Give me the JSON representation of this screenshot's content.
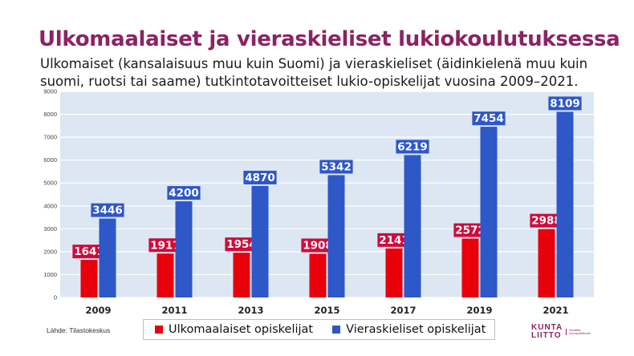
{
  "header": {
    "title": "Ulkomaalaiset ja vieraskieliset lukiokoulutuksessa",
    "subtitle": "Ulkomaiset (kansalaisuus muu kuin Suomi) ja vieraskieliset (äidinkielenä muu kuin suomi, ruotsi tai saame) tutkintotavoitteiset lukio-opiskelijat vuosina 2009–2021."
  },
  "chart_data": {
    "type": "bar",
    "categories": [
      "2009",
      "2011",
      "2013",
      "2015",
      "2017",
      "2019",
      "2021"
    ],
    "series": [
      {
        "name": "Ulkomaalaiset opiskelijat",
        "color": "#e8000b",
        "values": [
          1641,
          1917,
          1954,
          1908,
          2141,
          2572,
          2988
        ]
      },
      {
        "name": "Vieraskieliset opiskelijat",
        "color": "#2e57c8",
        "values": [
          3446,
          4200,
          4870,
          5342,
          6219,
          7454,
          8109
        ]
      }
    ],
    "ylim": [
      0,
      9000
    ],
    "yticks": [
      0,
      1000,
      2000,
      3000,
      4000,
      5000,
      6000,
      7000,
      8000,
      9000
    ],
    "grid": true,
    "plot_background": "#dce7f3",
    "legend_placement": "bottom",
    "label_colors": {
      "Ulkomaalaiset opiskelijat": "#d10a3c",
      "Vieraskieliset opiskelijat": "#2e57c8"
    }
  },
  "footer": {
    "source": "Lähde: Tilastokeskus",
    "logo_word_line1": "KUNTA",
    "logo_word_line2": "LIITTO",
    "logo_sub_line1": "Kuntaliitto",
    "logo_sub_line2": "Kommunförbundet"
  }
}
